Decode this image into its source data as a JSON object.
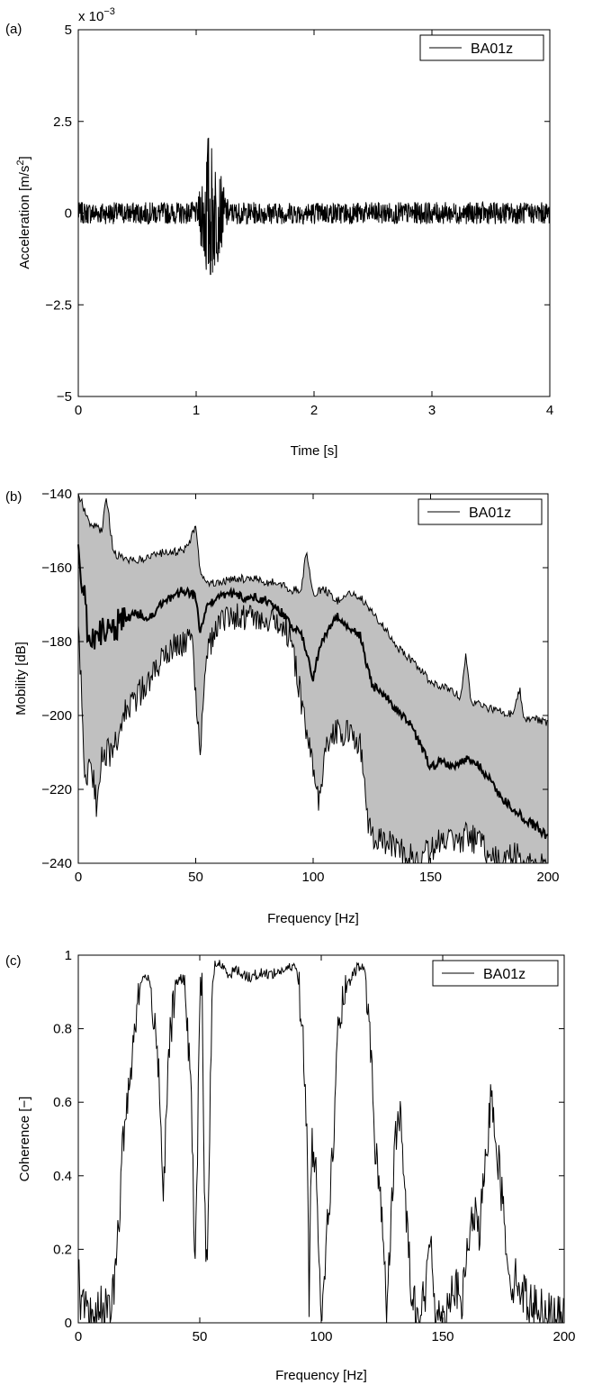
{
  "panels": [
    {
      "id": "a",
      "panel_label": "(a)",
      "exponent": {
        "base": "x 10",
        "power": "−3"
      },
      "chart_data": {
        "type": "line",
        "xlabel": "Time [s]",
        "ylabel_main": "Acceleration [m/s",
        "ylabel_sup": "2",
        "ylabel_tail": "]",
        "xlim": [
          0,
          4
        ],
        "ylim": [
          -5,
          5
        ],
        "xticks": [
          0,
          1,
          2,
          3,
          4
        ],
        "xtick_labels": [
          "0",
          "1",
          "2",
          "3",
          "4"
        ],
        "yticks": [
          -5,
          -2.5,
          0,
          2.5,
          5
        ],
        "ytick_labels": [
          "−5",
          "−2.5",
          "0",
          "2.5",
          "5"
        ],
        "grid": false,
        "legend_position": "top-right",
        "series": [
          {
            "name": "BA01z",
            "color": "#000000",
            "description_values": {
              "noise_amplitude": 0.3,
              "burst_start_s": 1.0,
              "burst_peak_s": 1.1,
              "burst_end_s": 1.3,
              "burst_peak_amplitude": 2.3,
              "burst_min": -2.4
            }
          }
        ]
      }
    },
    {
      "id": "b",
      "panel_label": "(b)",
      "chart_data": {
        "type": "line",
        "xlabel": "Frequency [Hz]",
        "ylabel": "Mobility [dB]",
        "xlim": [
          0,
          200
        ],
        "ylim": [
          -240,
          -140
        ],
        "xticks": [
          0,
          50,
          100,
          150,
          200
        ],
        "xtick_labels": [
          "0",
          "50",
          "100",
          "150",
          "200"
        ],
        "yticks": [
          -240,
          -220,
          -200,
          -180,
          -160,
          -140
        ],
        "ytick_labels": [
          "−240",
          "−220",
          "−200",
          "−180",
          "−160",
          "−140"
        ],
        "grid": false,
        "legend_position": "top-right",
        "band_color": "#c0c0c0",
        "series": [
          {
            "name": "BA01z",
            "color": "#000000",
            "role": "mean",
            "x": [
              0,
              5,
              10,
              15,
              20,
              25,
              30,
              35,
              40,
              45,
              50,
              52,
              55,
              60,
              65,
              70,
              75,
              80,
              85,
              90,
              95,
              100,
              102,
              105,
              110,
              115,
              120,
              125,
              130,
              135,
              140,
              145,
              150,
              155,
              160,
              165,
              170,
              175,
              180,
              185,
              190,
              195,
              200
            ],
            "values": [
              -155,
              -182,
              -178,
              -176,
              -174,
              -172,
              -174,
              -170,
              -168,
              -166,
              -168,
              -178,
              -170,
              -168,
              -167,
              -168,
              -168,
              -169,
              -171,
              -175,
              -178,
              -190,
              -184,
              -178,
              -173,
              -176,
              -178,
              -192,
              -194,
              -198,
              -201,
              -207,
              -214,
              -212,
              -214,
              -212,
              -213,
              -217,
              -222,
              -225,
              -228,
              -230,
              -233
            ]
          },
          {
            "role": "upper",
            "x": [
              0,
              5,
              10,
              12,
              15,
              20,
              25,
              30,
              35,
              40,
              45,
              48,
              50,
              52,
              55,
              60,
              65,
              70,
              75,
              80,
              85,
              90,
              95,
              97,
              100,
              105,
              110,
              115,
              120,
              125,
              130,
              135,
              140,
              145,
              150,
              155,
              160,
              163,
              165,
              167,
              170,
              175,
              180,
              185,
              188,
              190,
              195,
              200
            ],
            "values": [
              -140,
              -148,
              -150,
              -141,
              -156,
              -158,
              -158,
              -157,
              -156,
              -156,
              -155,
              -152,
              -148,
              -162,
              -164,
              -164,
              -163,
              -163,
              -163,
              -164,
              -164,
              -166,
              -166,
              -156,
              -167,
              -166,
              -169,
              -167,
              -168,
              -172,
              -176,
              -181,
              -184,
              -187,
              -191,
              -192,
              -194,
              -195,
              -183,
              -196,
              -197,
              -198,
              -199,
              -200,
              -193,
              -201,
              -201,
              -202
            ]
          },
          {
            "role": "lower",
            "x": [
              0,
              3,
              5,
              8,
              10,
              15,
              20,
              25,
              30,
              35,
              40,
              45,
              48,
              50,
              52,
              55,
              60,
              65,
              70,
              75,
              80,
              85,
              90,
              95,
              100,
              103,
              105,
              110,
              115,
              120,
              123,
              125,
              130,
              135,
              140,
              145,
              150,
              155,
              160,
              165,
              170,
              175,
              180,
              185,
              190,
              195,
              200
            ],
            "values": [
              -175,
              -218,
              -212,
              -225,
              -210,
              -210,
              -198,
              -195,
              -190,
              -186,
              -182,
              -180,
              -176,
              -195,
              -210,
              -182,
              -174,
              -173,
              -173,
              -173,
              -174,
              -175,
              -178,
              -196,
              -215,
              -225,
              -210,
              -204,
              -205,
              -208,
              -228,
              -232,
              -234,
              -236,
              -238,
              -240,
              -236,
              -233,
              -234,
              -233,
              -234,
              -238,
              -240,
              -238,
              -239,
              -240,
              -240
            ]
          }
        ]
      }
    },
    {
      "id": "c",
      "panel_label": "(c)",
      "chart_data": {
        "type": "line",
        "xlabel": "Frequency [Hz]",
        "ylabel": "Coherence [−]",
        "xlim": [
          0,
          200
        ],
        "ylim": [
          0,
          1
        ],
        "xticks": [
          0,
          50,
          100,
          150,
          200
        ],
        "xtick_labels": [
          "0",
          "50",
          "100",
          "150",
          "200"
        ],
        "yticks": [
          0,
          0.2,
          0.4,
          0.6,
          0.8,
          1
        ],
        "ytick_labels": [
          "0",
          "0.2",
          "0.4",
          "0.6",
          "0.8",
          "1"
        ],
        "grid": false,
        "legend_position": "top-right",
        "series": [
          {
            "name": "BA01z",
            "color": "#000000",
            "x": [
              0,
              1,
              2,
              5,
              10,
              13,
              15,
              17,
              18,
              20,
              22,
              24,
              26,
              28,
              30,
              32,
              34,
              35,
              37,
              40,
              43,
              45,
              47,
              48,
              49,
              50,
              51,
              52,
              53,
              55,
              56,
              58,
              60,
              62,
              65,
              70,
              75,
              80,
              85,
              90,
              92,
              94,
              95,
              96,
              98,
              100,
              102,
              105,
              107,
              110,
              112,
              115,
              118,
              120,
              122,
              125,
              127,
              130,
              132,
              135,
              137,
              140,
              143,
              145,
              147,
              150,
              153,
              155,
              158,
              160,
              163,
              165,
              168,
              170,
              172,
              175,
              178,
              180,
              185,
              190,
              195,
              200
            ],
            "values": [
              0.16,
              0.02,
              0.04,
              0.01,
              0.05,
              0.02,
              0.12,
              0.3,
              0.45,
              0.6,
              0.72,
              0.86,
              0.93,
              0.95,
              0.9,
              0.8,
              0.58,
              0.3,
              0.72,
              0.92,
              0.94,
              0.82,
              0.5,
              0.12,
              0.45,
              0.88,
              0.9,
              0.3,
              0.15,
              0.85,
              0.97,
              0.98,
              0.96,
              0.95,
              0.96,
              0.94,
              0.95,
              0.95,
              0.96,
              0.97,
              0.82,
              0.55,
              0.06,
              0.5,
              0.4,
              0.04,
              0.2,
              0.5,
              0.8,
              0.9,
              0.93,
              0.97,
              0.96,
              0.8,
              0.5,
              0.3,
              0.02,
              0.45,
              0.6,
              0.3,
              0.1,
              0.02,
              0.08,
              0.25,
              0.03,
              0.01,
              0.08,
              0.1,
              0.05,
              0.2,
              0.3,
              0.24,
              0.45,
              0.64,
              0.5,
              0.3,
              0.1,
              0.12,
              0.06,
              0.04,
              0.02,
              0.01
            ]
          }
        ]
      }
    }
  ]
}
